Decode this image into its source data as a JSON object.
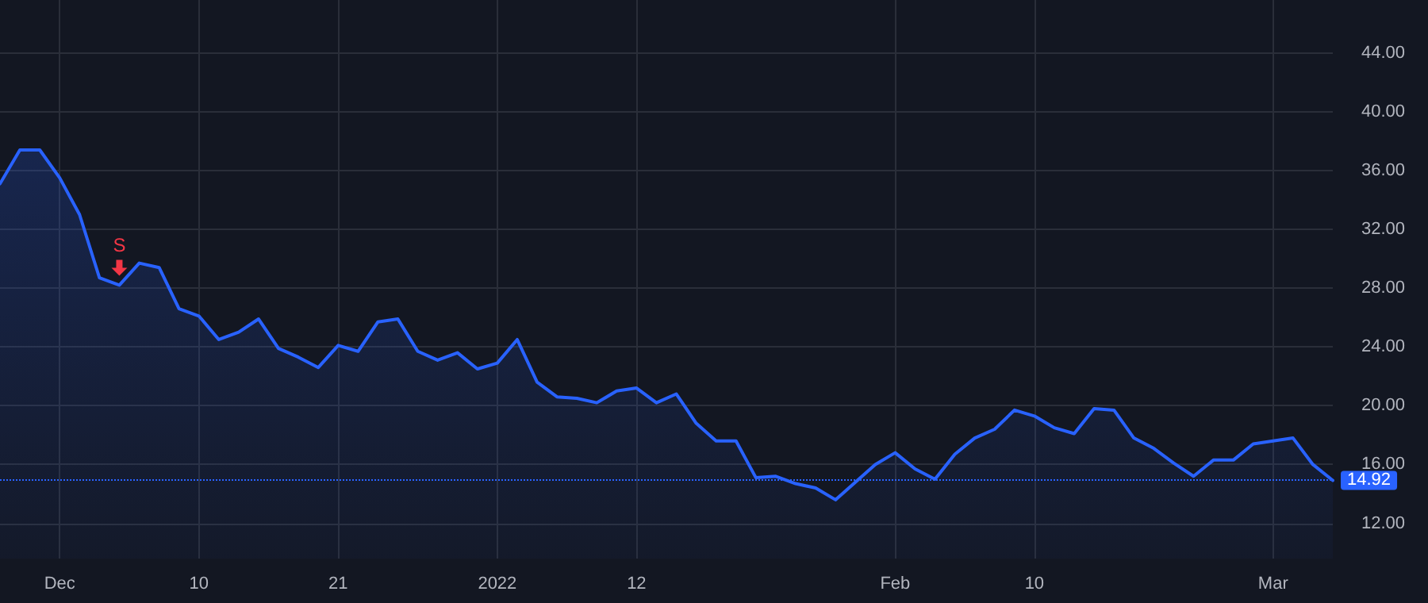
{
  "chart_data": {
    "type": "area",
    "categories": [
      null,
      null,
      null,
      "Dec",
      null,
      null,
      null,
      null,
      null,
      null,
      "10",
      null,
      null,
      null,
      null,
      null,
      null,
      "21",
      null,
      null,
      null,
      null,
      null,
      null,
      null,
      "2022",
      null,
      null,
      null,
      null,
      null,
      null,
      "12",
      null,
      null,
      null,
      null,
      null,
      null,
      null,
      null,
      null,
      null,
      null,
      null,
      "Feb",
      null,
      null,
      null,
      null,
      null,
      null,
      "10",
      null,
      null,
      null,
      null,
      null,
      null,
      null,
      null,
      null,
      null,
      null,
      "Mar",
      null,
      null,
      null
    ],
    "series": [
      {
        "color": "#2962ff",
        "values": [
          35.1,
          37.4,
          37.4,
          35.5,
          33.0,
          28.7,
          28.2,
          29.7,
          29.4,
          26.6,
          26.1,
          24.5,
          25.0,
          25.9,
          23.9,
          23.3,
          22.6,
          24.1,
          23.7,
          25.7,
          25.9,
          23.7,
          23.1,
          23.6,
          22.5,
          22.9,
          24.5,
          21.6,
          20.6,
          20.5,
          20.2,
          21.0,
          21.2,
          20.2,
          20.8,
          18.8,
          17.6,
          17.6,
          15.1,
          15.2,
          14.7,
          14.4,
          13.6,
          14.8,
          16.0,
          16.8,
          15.7,
          15.0,
          16.7,
          17.8,
          18.4,
          19.7,
          19.3,
          18.5,
          18.1,
          19.8,
          19.7,
          17.8,
          17.1,
          16.1,
          15.2,
          16.3,
          16.3,
          17.4,
          17.6,
          17.8,
          16.0,
          14.92
        ]
      }
    ],
    "ylim": [
      9.6,
      47.6
    ],
    "yticks": [
      {
        "value": 12,
        "label": "12.00"
      },
      {
        "value": 16,
        "label": "16.00"
      },
      {
        "value": 20,
        "label": "20.00"
      },
      {
        "value": 24,
        "label": "24.00"
      },
      {
        "value": 28,
        "label": "28.00"
      },
      {
        "value": 32,
        "label": "32.00"
      },
      {
        "value": 36,
        "label": "36.00"
      },
      {
        "value": 40,
        "label": "40.00"
      },
      {
        "value": 44,
        "label": "44.00"
      }
    ],
    "ref_lines": [
      {
        "axis": "y",
        "value": 14.92,
        "label": "14.92",
        "color": "#2962ff",
        "line_style": "dotted"
      }
    ],
    "annotations": [
      {
        "text": "S",
        "y": 28.2
      }
    ],
    "grid": true,
    "marker": "none",
    "line_style": "solid"
  }
}
